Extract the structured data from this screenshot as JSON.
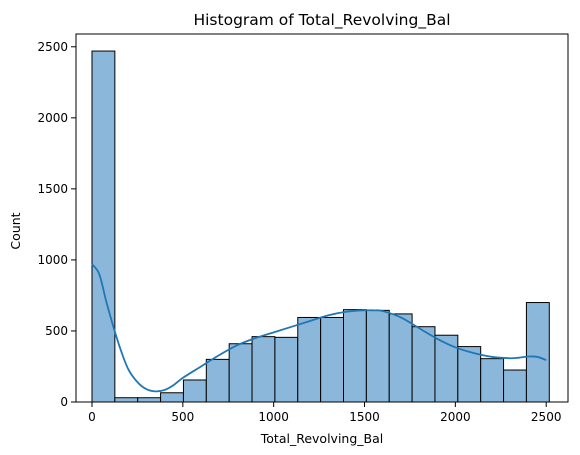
{
  "chart_data": {
    "type": "bar",
    "subtype": "histogram",
    "title": "Histogram of Total_Revolving_Bal",
    "xlabel": "Total_Revolving_Bal",
    "ylabel": "Count",
    "xlim": [
      -88,
      2620
    ],
    "ylim": [
      0,
      2590
    ],
    "xticks": [
      0,
      500,
      1000,
      1500,
      2000,
      2500
    ],
    "yticks": [
      0,
      500,
      1000,
      1500,
      2000,
      2500
    ],
    "grid": false,
    "bin_edges": [
      0,
      125.85,
      251.7,
      377.55,
      503.4,
      629.25,
      755.1,
      880.95,
      1006.8,
      1132.65,
      1258.5,
      1384.35,
      1510.2,
      1636.05,
      1761.9,
      1887.75,
      2013.6,
      2139.45,
      2265.3,
      2391.15,
      2517
    ],
    "counts": [
      2470,
      30,
      30,
      65,
      155,
      300,
      410,
      460,
      455,
      595,
      595,
      650,
      645,
      620,
      530,
      470,
      390,
      305,
      225,
      700
    ],
    "kde": {
      "x": [
        0,
        40,
        80,
        120,
        160,
        200,
        250,
        300,
        350,
        400,
        450,
        500,
        600,
        700,
        800,
        900,
        1000,
        1100,
        1200,
        1300,
        1400,
        1500,
        1550,
        1600,
        1700,
        1800,
        1900,
        2000,
        2100,
        2200,
        2300,
        2350,
        2400,
        2450,
        2500
      ],
      "y": [
        970,
        900,
        700,
        520,
        360,
        230,
        140,
        90,
        75,
        85,
        120,
        170,
        250,
        330,
        400,
        450,
        490,
        530,
        570,
        610,
        635,
        645,
        645,
        640,
        595,
        520,
        445,
        385,
        345,
        318,
        308,
        312,
        320,
        318,
        295
      ]
    },
    "colors": {
      "bar_fill": "#8bb8da",
      "bar_edge": "#000000",
      "kde_line": "#1f77b4"
    }
  }
}
